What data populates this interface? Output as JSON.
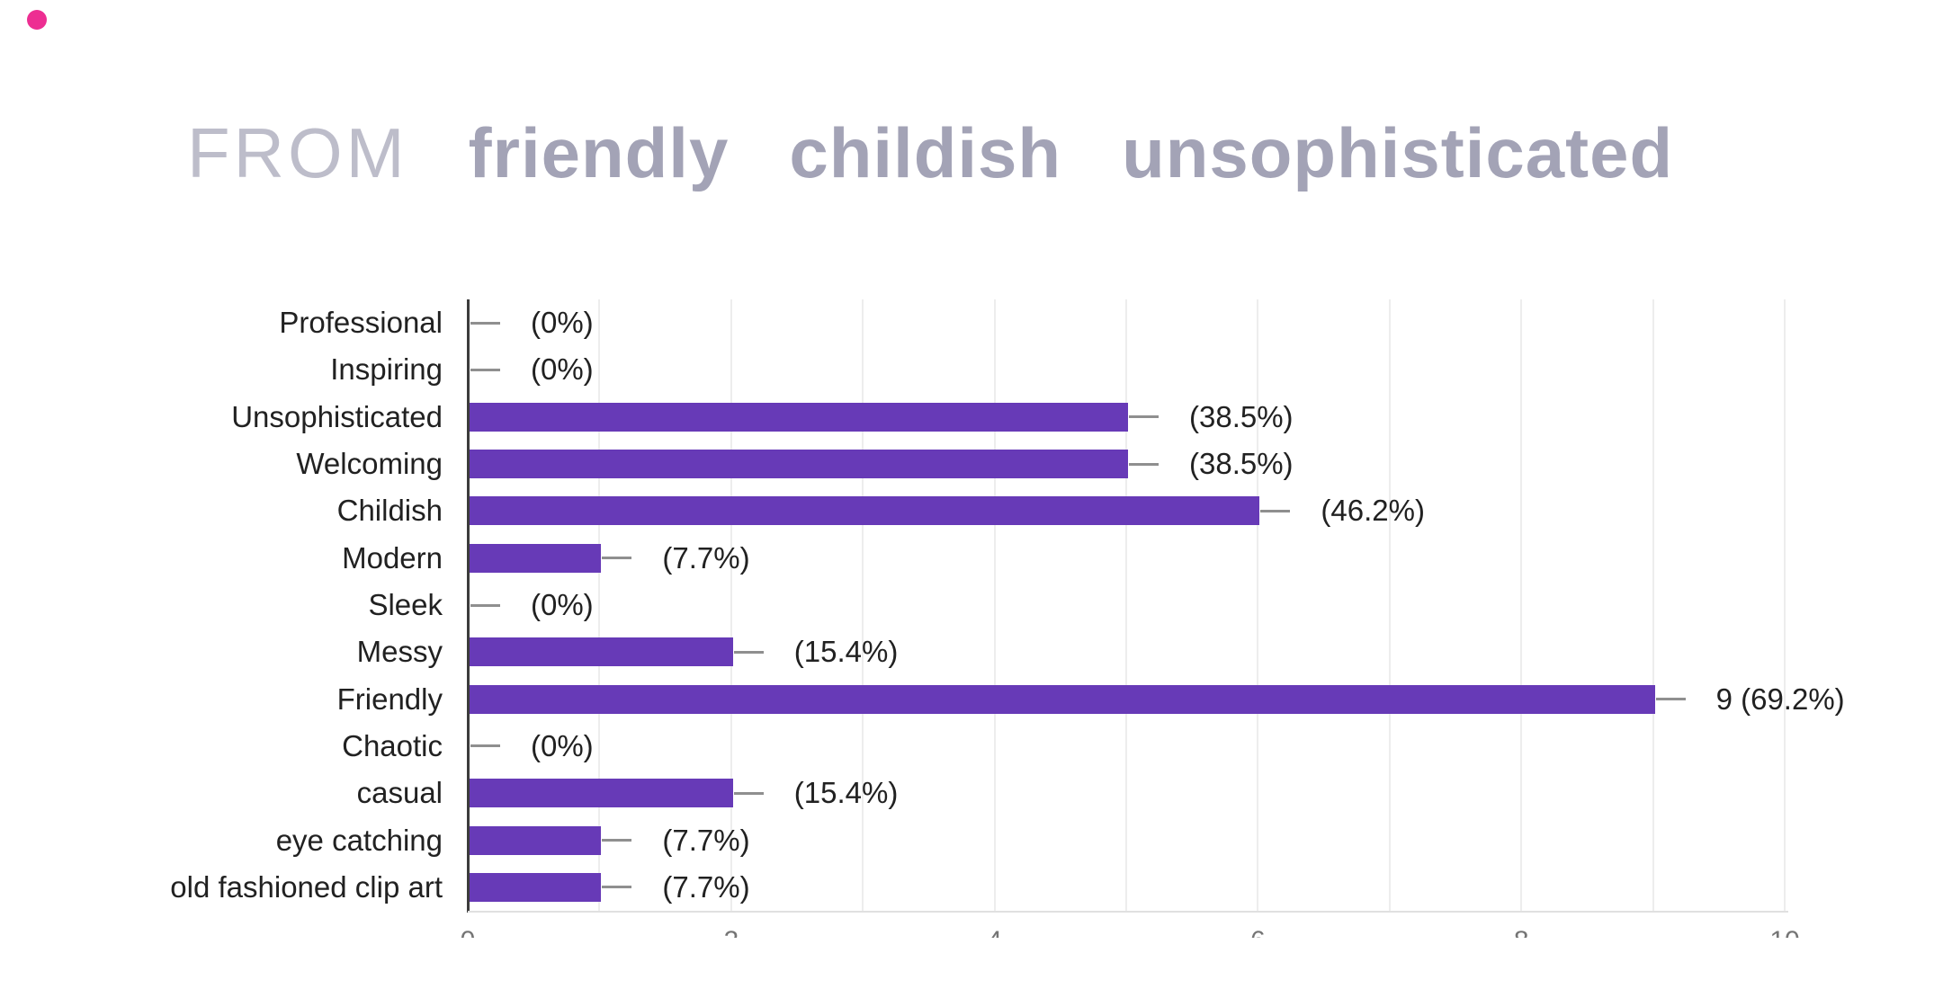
{
  "brand_dot": {
    "color": "#ED2E92"
  },
  "title": {
    "prefix": "FROM",
    "words": [
      "friendly",
      "childish",
      "unsophisticated"
    ],
    "prefix_color": "#bdbdca",
    "words_color": "#a3a3b6"
  },
  "chart_data": {
    "type": "bar",
    "orientation": "horizontal",
    "title": "",
    "xlabel": "",
    "ylabel": "",
    "categories": [
      "Professional",
      "Inspiring",
      "Unsophisticated",
      "Welcoming",
      "Childish",
      "Modern",
      "Sleek",
      "Messy",
      "Friendly",
      "Chaotic",
      "casual",
      "eye catching",
      "old fashioned clip art"
    ],
    "counts": [
      0,
      0,
      5,
      5,
      6,
      1,
      0,
      2,
      9,
      0,
      2,
      1,
      1
    ],
    "values_pct": [
      0,
      0,
      38.5,
      38.5,
      46.2,
      7.7,
      0,
      15.4,
      69.2,
      0,
      15.4,
      7.7,
      7.7
    ],
    "value_labels": [
      "(0%)",
      "(0%)",
      "(38.5%)",
      "(38.5%)",
      "(46.2%)",
      "(7.7%)",
      "(0%)",
      "(15.4%)",
      "9 (69.2%)",
      "(0%)",
      "(15.4%)",
      "(7.7%)",
      "(7.7%)"
    ],
    "bar_color": "#673AB7",
    "label_color": "#212121",
    "grid": true,
    "gridline_color": "#ededed",
    "gridline_step": 1,
    "xlim": [
      0,
      10
    ],
    "x_ticks": [
      "0",
      "2",
      "4",
      "6",
      "8",
      "10"
    ],
    "legend_position": "none"
  }
}
